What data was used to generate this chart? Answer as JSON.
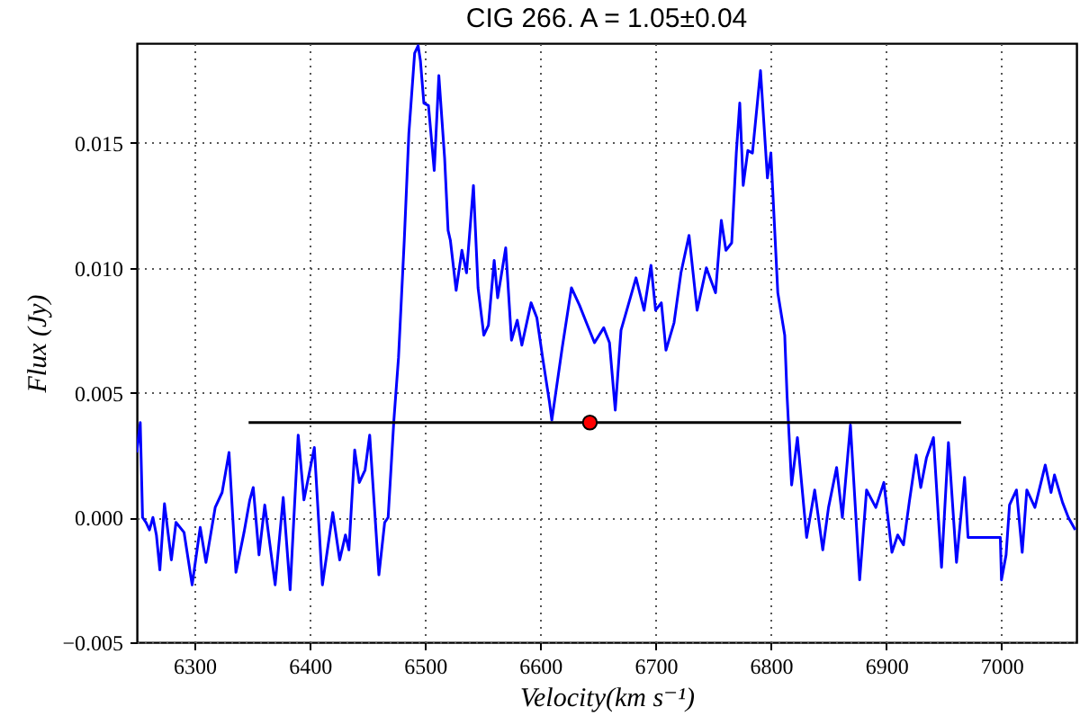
{
  "chart_data": {
    "type": "line",
    "title": "CIG 266. A = 1.05±0.04",
    "xlabel": "Velocity(km s⁻¹)",
    "ylabel": "Flux (Jy)",
    "xlim": [
      6250,
      7065
    ],
    "xticks": [
      6300,
      6400,
      6500,
      6600,
      6700,
      6800,
      6900,
      7000
    ],
    "ylim": [
      -0.005,
      0.019
    ],
    "yticks": [
      {
        "value": -0.005,
        "label": "−0.005"
      },
      {
        "value": 0,
        "label": "0.000"
      },
      {
        "value": 0.005,
        "label": "0.005"
      },
      {
        "value": 0.01,
        "label": "0.010"
      },
      {
        "value": 0.015,
        "label": "0.015"
      }
    ],
    "grid": true,
    "line_style": "solid",
    "series": [
      {
        "color": "#0000ff",
        "x": [
          6250,
          6253,
          6255,
          6258,
          6261,
          6264,
          6267,
          6270,
          6274,
          6280,
          6284,
          6291,
          6298,
          6305,
          6310,
          6318,
          6324,
          6330,
          6336,
          6343,
          6348,
          6351,
          6356,
          6361,
          6370,
          6377,
          6383,
          6390,
          6395,
          6404,
          6411,
          6420,
          6426,
          6431,
          6434,
          6439,
          6443,
          6448,
          6452,
          6460,
          6465,
          6468,
          6473,
          6477,
          6482,
          6486,
          6491,
          6494,
          6496,
          6499,
          6503,
          6508,
          6512,
          6517,
          6520,
          6522,
          6527,
          6532,
          6536,
          6542,
          6546,
          6551,
          6555,
          6560,
          6563,
          6570,
          6575,
          6580,
          6584,
          6592,
          6597,
          6602,
          6608,
          6610,
          6619,
          6627,
          6634,
          6640,
          6647,
          6655,
          6660,
          6665,
          6670,
          6675,
          6683,
          6690,
          6696,
          6700,
          6705,
          6709,
          6716,
          6722,
          6729,
          6736,
          6744,
          6752,
          6757,
          6761,
          6766,
          6770,
          6773,
          6776,
          6780,
          6784,
          6791,
          6797,
          6800,
          6806,
          6812,
          6814,
          6818,
          6823,
          6831,
          6838,
          6845,
          6850,
          6857,
          6862,
          6869,
          6877,
          6883,
          6891,
          6898,
          6905,
          6910,
          6915,
          6920,
          6926,
          6930,
          6935,
          6941,
          6948,
          6954,
          6961,
          6968,
          6971,
          6999,
          7000,
          7004,
          7007,
          7013,
          7018,
          7022,
          7029,
          7038,
          7043,
          7046,
          7053,
          7058,
          7064
        ],
        "values": [
          0.0026,
          0.0038,
          0.0,
          -0.0002,
          -0.0005,
          0.0,
          -0.0007,
          -0.0021,
          0.00055,
          -0.0017,
          -0.0002,
          -0.0006,
          -0.0027,
          -0.0004,
          -0.0018,
          0.0004,
          0.001,
          0.0026,
          -0.0022,
          -0.0006,
          0.0007,
          0.0012,
          -0.0015,
          0.0005,
          -0.0027,
          0.0008,
          -0.0029,
          0.0033,
          0.0007,
          0.0028,
          -0.0027,
          0.0002,
          -0.0017,
          -0.0007,
          -0.0013,
          0.0027,
          0.0014,
          0.0019,
          0.0033,
          -0.0023,
          -0.0002,
          0.0,
          0.0039,
          0.0064,
          0.0111,
          0.0154,
          0.0186,
          0.0189,
          0.0183,
          0.0166,
          0.0165,
          0.0139,
          0.0177,
          0.0144,
          0.0115,
          0.0111,
          0.0091,
          0.0107,
          0.0098,
          0.0133,
          0.0092,
          0.0073,
          0.0077,
          0.0103,
          0.0088,
          0.0108,
          0.0071,
          0.0079,
          0.0069,
          0.0086,
          0.008,
          0.0064,
          0.0046,
          0.0039,
          0.0068,
          0.0092,
          0.0085,
          0.0078,
          0.007,
          0.0076,
          0.007,
          0.0043,
          0.0075,
          0.0083,
          0.0096,
          0.0083,
          0.0101,
          0.0083,
          0.0086,
          0.0067,
          0.0078,
          0.0098,
          0.0113,
          0.0083,
          0.01,
          0.009,
          0.0119,
          0.0107,
          0.011,
          0.0146,
          0.0166,
          0.0133,
          0.0147,
          0.0146,
          0.0179,
          0.0136,
          0.0146,
          0.009,
          0.0073,
          0.0049,
          0.0013,
          0.0032,
          -0.0008,
          0.0011,
          -0.0013,
          0.0004,
          0.002,
          0.0,
          0.0037,
          -0.0025,
          0.0011,
          0.0004,
          0.0014,
          -0.0014,
          -0.0007,
          -0.0011,
          0.0006,
          0.0025,
          0.0012,
          0.0024,
          0.0032,
          -0.002,
          0.003,
          -0.0018,
          0.0016,
          -0.0008,
          -0.0008,
          -0.0025,
          -0.0015,
          0.0005,
          0.0011,
          -0.0014,
          0.0011,
          0.0004,
          0.0021,
          0.001,
          0.0017,
          0.0006,
          0.0,
          -0.0005
        ]
      },
      {
        "type": "line",
        "color": "#000000",
        "x": [
          6347,
          6965
        ],
        "values": [
          0.0038,
          0.0038
        ]
      },
      {
        "type": "scatter",
        "color": "#ff0000",
        "marker": "circle",
        "x": [
          6643
        ],
        "values": [
          0.0038
        ]
      }
    ]
  }
}
